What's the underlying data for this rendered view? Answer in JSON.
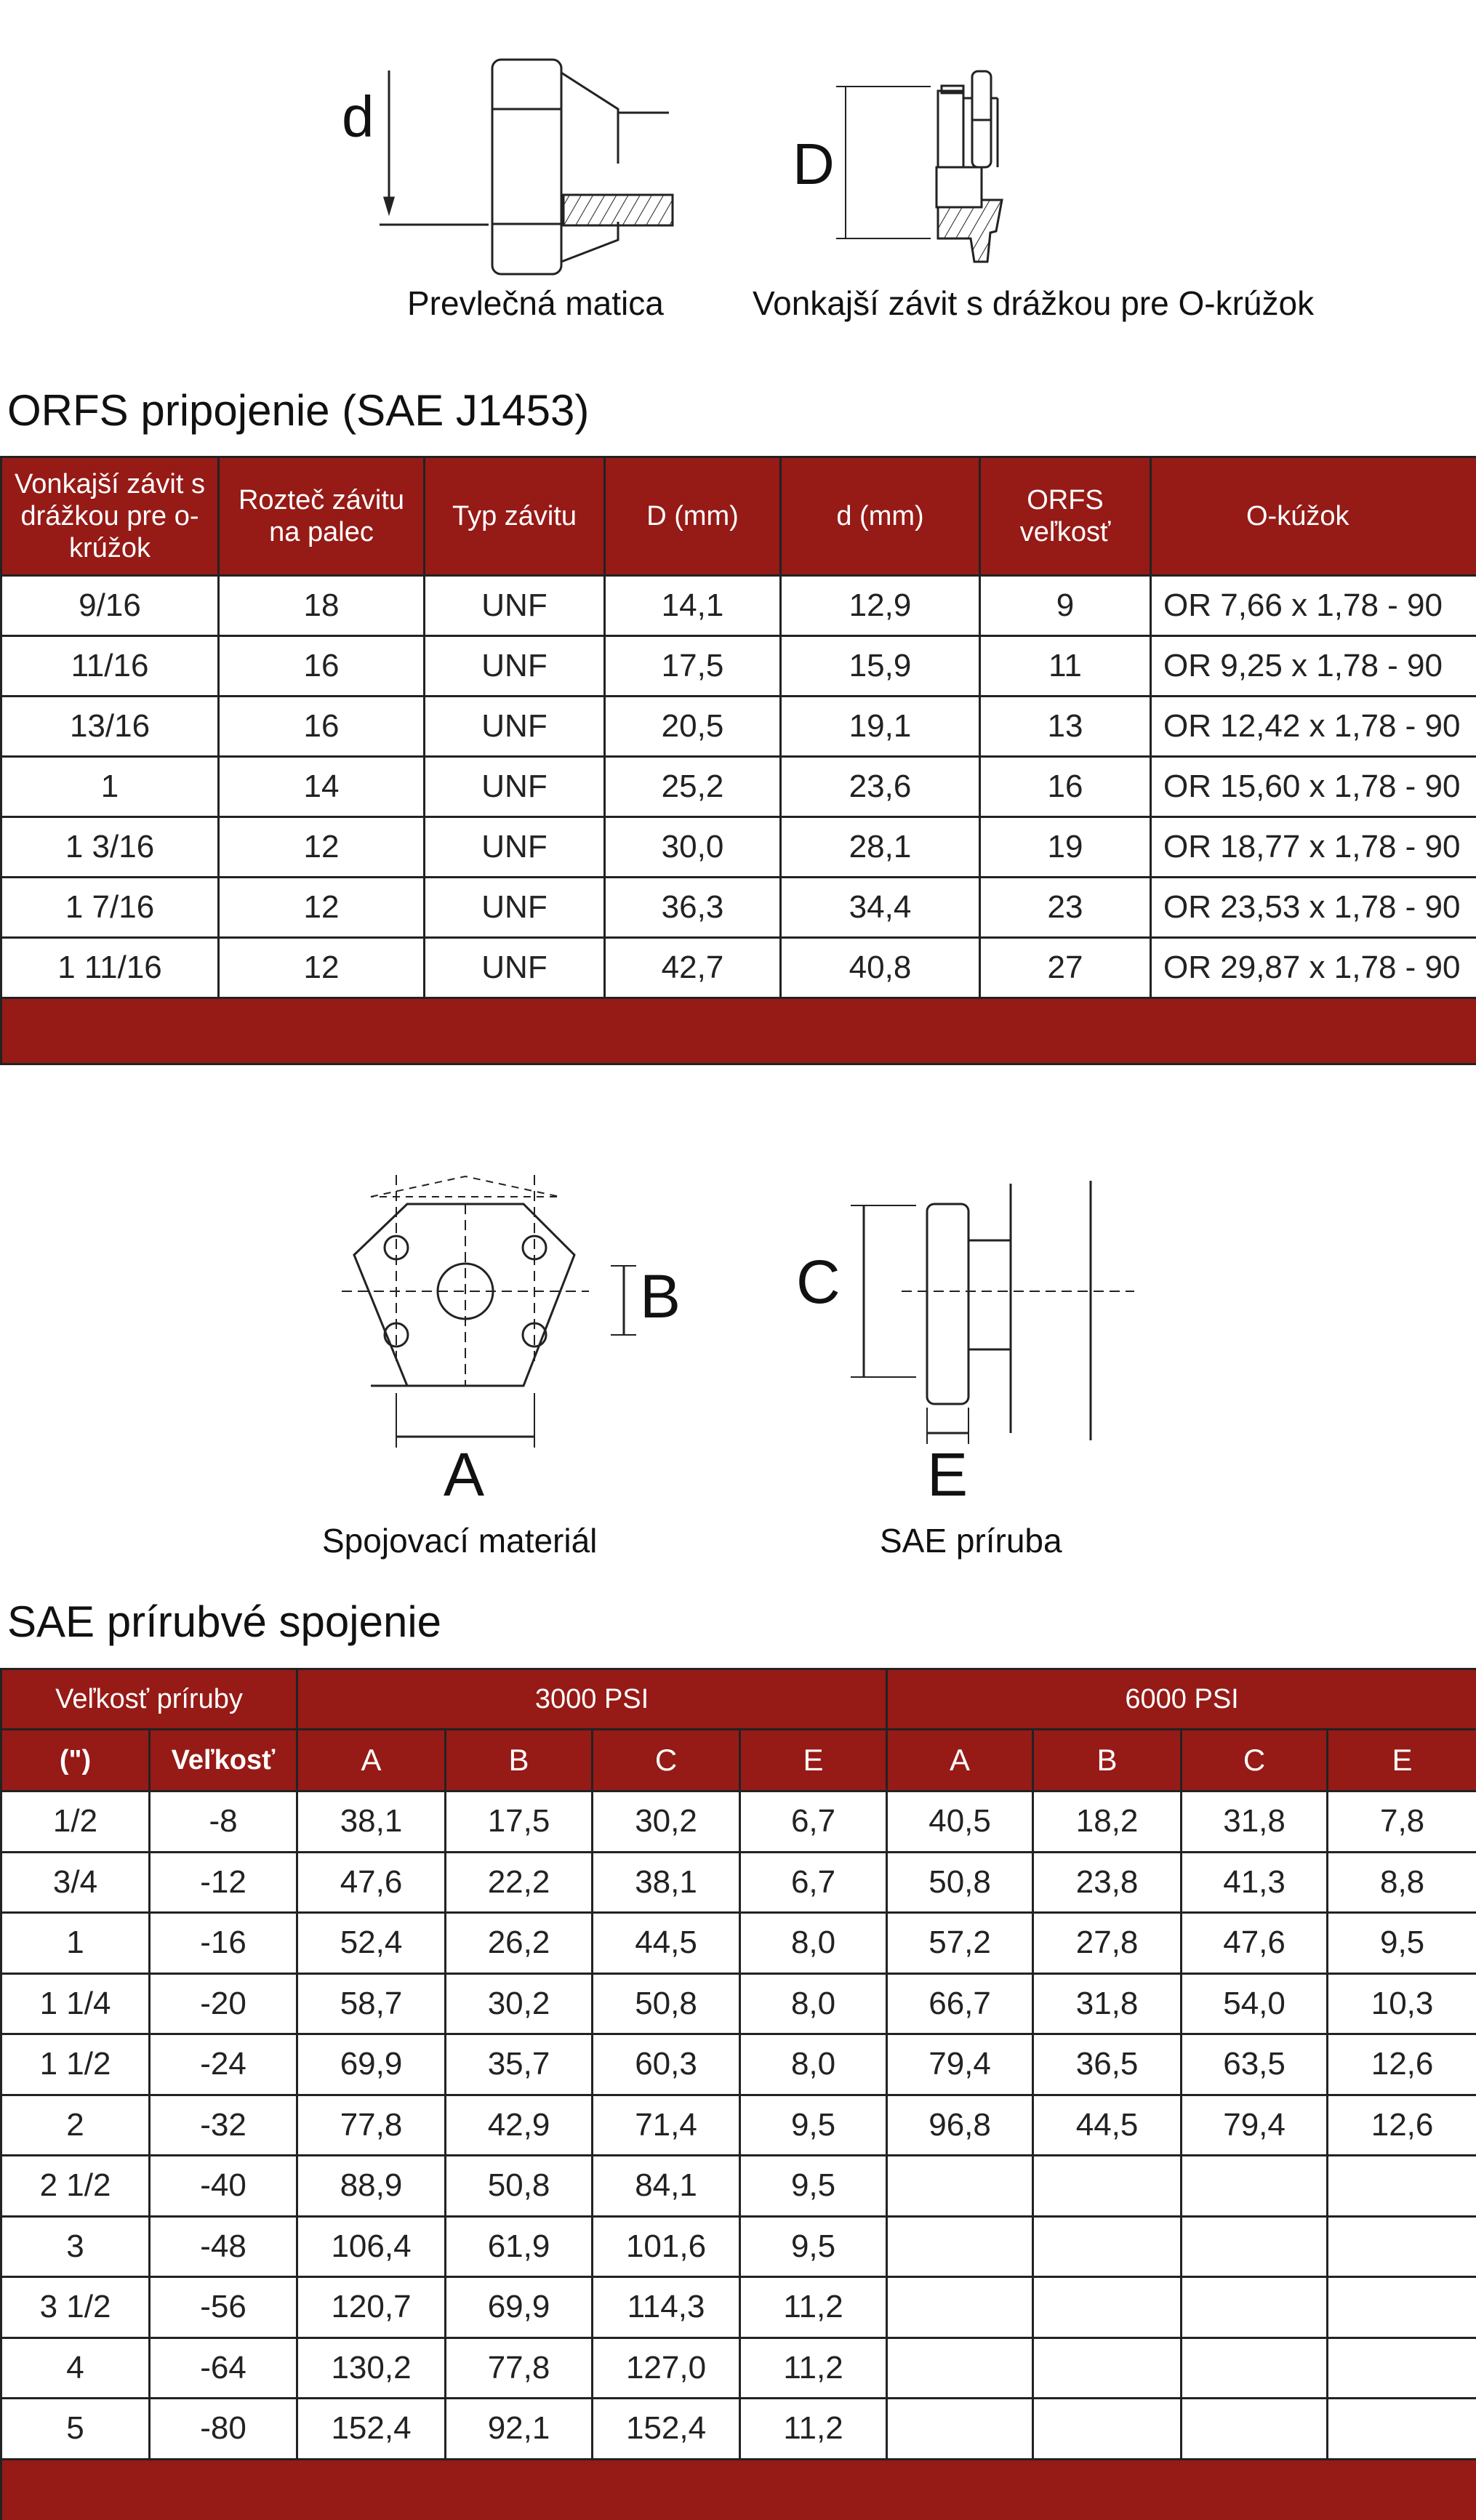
{
  "diagram1": {
    "label_d": "d",
    "label_D": "D",
    "caption_nut": "Prevlečná matica",
    "caption_male": "Vonkajší závit s drážkou pre O-krúžok"
  },
  "orfs": {
    "title": "ORFS pripojenie (SAE J1453)",
    "headers": [
      "Vonkajší závit s drážkou pre o-krúžok",
      "Rozteč závitu na palec",
      "Typ závitu",
      "D (mm)",
      "d (mm)",
      "ORFS veľkosť",
      "O-kúžok"
    ],
    "rows": [
      [
        "9/16",
        "18",
        "UNF",
        "14,1",
        "12,9",
        "9",
        "OR 7,66 x 1,78 - 90"
      ],
      [
        "11/16",
        "16",
        "UNF",
        "17,5",
        "15,9",
        "11",
        "OR 9,25 x 1,78 - 90"
      ],
      [
        "13/16",
        "16",
        "UNF",
        "20,5",
        "19,1",
        "13",
        "OR 12,42 x 1,78 - 90"
      ],
      [
        "1",
        "14",
        "UNF",
        "25,2",
        "23,6",
        "16",
        "OR 15,60 x 1,78 - 90"
      ],
      [
        "1 3/16",
        "12",
        "UNF",
        "30,0",
        "28,1",
        "19",
        "OR 18,77 x 1,78 - 90"
      ],
      [
        "1 7/16",
        "12",
        "UNF",
        "36,3",
        "34,4",
        "23",
        "OR 23,53 x 1,78 - 90"
      ],
      [
        "1 11/16",
        "12",
        "UNF",
        "42,7",
        "40,8",
        "27",
        "OR 29,87 x 1,78 - 90"
      ]
    ]
  },
  "diagram2": {
    "label_A": "A",
    "label_B": "B",
    "label_C": "C",
    "label_E": "E",
    "caption_hardware": "Spojovací materiál",
    "caption_flange": "SAE príruba"
  },
  "sae": {
    "title": "SAE prírubvé spojenie",
    "group_size": "Veľkosť príruby",
    "group_3000": "3000 PSI",
    "group_6000": "6000 PSI",
    "sub_headers": [
      "(\")",
      "Veľkosť",
      "A",
      "B",
      "C",
      "E",
      "A",
      "B",
      "C",
      "E"
    ],
    "rows": [
      [
        "1/2",
        "-8",
        "38,1",
        "17,5",
        "30,2",
        "6,7",
        "40,5",
        "18,2",
        "31,8",
        "7,8"
      ],
      [
        "3/4",
        "-12",
        "47,6",
        "22,2",
        "38,1",
        "6,7",
        "50,8",
        "23,8",
        "41,3",
        "8,8"
      ],
      [
        "1",
        "-16",
        "52,4",
        "26,2",
        "44,5",
        "8,0",
        "57,2",
        "27,8",
        "47,6",
        "9,5"
      ],
      [
        "1 1/4",
        "-20",
        "58,7",
        "30,2",
        "50,8",
        "8,0",
        "66,7",
        "31,8",
        "54,0",
        "10,3"
      ],
      [
        "1 1/2",
        "-24",
        "69,9",
        "35,7",
        "60,3",
        "8,0",
        "79,4",
        "36,5",
        "63,5",
        "12,6"
      ],
      [
        "2",
        "-32",
        "77,8",
        "42,9",
        "71,4",
        "9,5",
        "96,8",
        "44,5",
        "79,4",
        "12,6"
      ],
      [
        "2 1/2",
        "-40",
        "88,9",
        "50,8",
        "84,1",
        "9,5",
        "",
        "",
        "",
        ""
      ],
      [
        "3",
        "-48",
        "106,4",
        "61,9",
        "101,6",
        "9,5",
        "",
        "",
        "",
        ""
      ],
      [
        "3 1/2",
        "-56",
        "120,7",
        "69,9",
        "114,3",
        "11,2",
        "",
        "",
        "",
        ""
      ],
      [
        "4",
        "-64",
        "130,2",
        "77,8",
        "127,0",
        "11,2",
        "",
        "",
        "",
        ""
      ],
      [
        "5",
        "-80",
        "152,4",
        "92,1",
        "152,4",
        "11,2",
        "",
        "",
        "",
        ""
      ]
    ]
  },
  "colors": {
    "header_red": "#961a16"
  }
}
